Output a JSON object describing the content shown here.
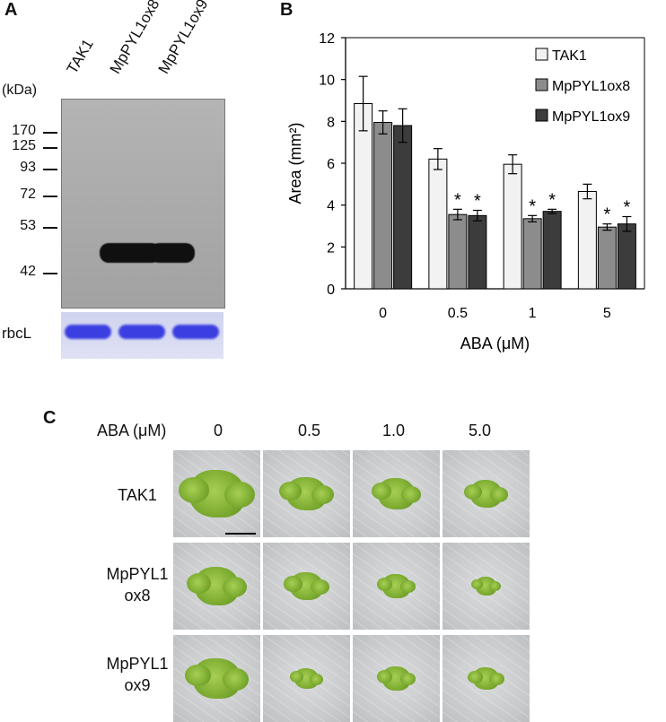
{
  "panelA": {
    "letter": "A",
    "kda_label": "(kDa)",
    "lanes": [
      "TAK1",
      "MpPYL1ox8",
      "MpPYL1ox9"
    ],
    "markers": [
      "170",
      "125",
      "93",
      "72",
      "53",
      "42"
    ],
    "rbcl_label": "rbcL"
  },
  "panelB": {
    "letter": "B",
    "asterisk": "*"
  },
  "chart_data": {
    "type": "bar",
    "categories": [
      "0",
      "0.5",
      "1",
      "5"
    ],
    "series": [
      {
        "name": "TAK1",
        "values": [
          8.85,
          6.2,
          5.95,
          4.65
        ],
        "errors": [
          1.3,
          0.5,
          0.45,
          0.35
        ],
        "color": "#f2f2f2"
      },
      {
        "name": "MpPYL1ox8",
        "values": [
          7.95,
          3.55,
          3.35,
          2.95
        ],
        "errors": [
          0.55,
          0.25,
          0.15,
          0.15
        ],
        "color": "#8c8c8c"
      },
      {
        "name": "MpPYL1ox9",
        "values": [
          7.8,
          3.5,
          3.7,
          3.1
        ],
        "errors": [
          0.8,
          0.25,
          0.1,
          0.35
        ],
        "color": "#3c3c3c"
      }
    ],
    "significant": [
      [
        false,
        false,
        false
      ],
      [
        false,
        true,
        true
      ],
      [
        false,
        true,
        true
      ],
      [
        false,
        true,
        true
      ]
    ],
    "title": "",
    "xlabel": "ABA (μM)",
    "ylabel": "Area (mm²)",
    "ylim": [
      0,
      12
    ],
    "yticks": [
      "0",
      "2",
      "4",
      "6",
      "8",
      "10",
      "12"
    ],
    "grid": false,
    "legend": "top-right"
  },
  "panelC": {
    "letter": "C",
    "header_label": "ABA (μM)",
    "columns": [
      "0",
      "0.5",
      "1.0",
      "5.0"
    ],
    "rows": [
      {
        "line1": "TAK1",
        "line2": ""
      },
      {
        "line1": "MpPYL1",
        "line2": "ox8"
      },
      {
        "line1": "MpPYL1",
        "line2": "ox9"
      }
    ],
    "relative_sizes": [
      [
        1.0,
        0.72,
        0.66,
        0.58
      ],
      [
        0.8,
        0.6,
        0.5,
        0.38
      ],
      [
        0.85,
        0.45,
        0.5,
        0.48
      ]
    ]
  }
}
